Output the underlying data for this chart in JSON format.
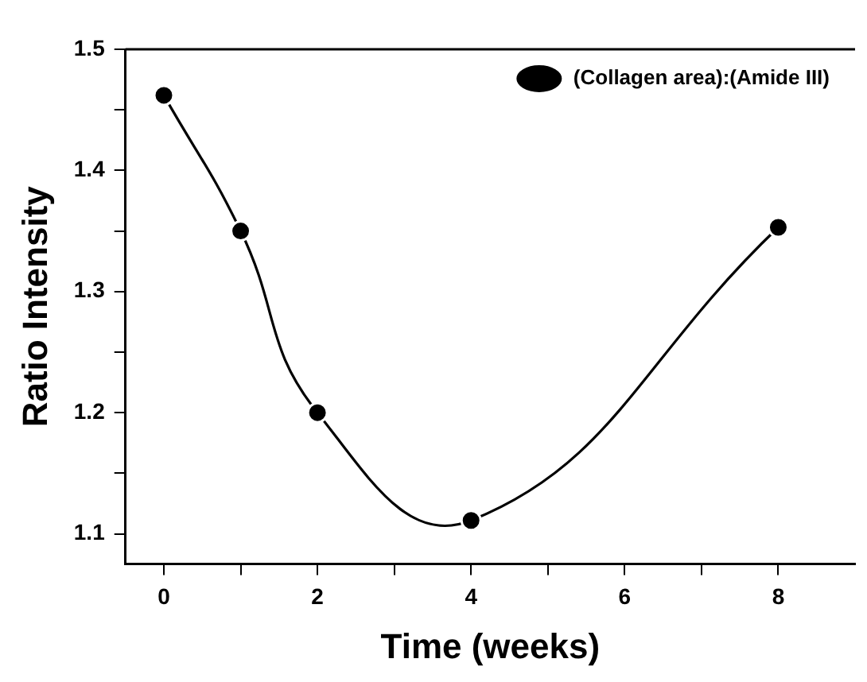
{
  "chart_data": {
    "type": "line",
    "xlabel": "Time (weeks)",
    "ylabel": "Ratio Intensity",
    "x": [
      0,
      1,
      2,
      4,
      8
    ],
    "series": [
      {
        "name": "(Collagen area):(Amide III)",
        "color": "#000000",
        "values": [
          1.462,
          1.35,
          1.2,
          1.111,
          1.353
        ]
      }
    ],
    "xlim": [
      -0.5,
      9
    ],
    "xticks": [
      0,
      {
        "value": 1,
        "label": null
      },
      2,
      {
        "value": 3,
        "label": null
      },
      4,
      {
        "value": 5,
        "label": null
      },
      6,
      {
        "value": 7,
        "label": null
      },
      8
    ],
    "ylim": [
      1.075,
      1.5
    ],
    "yticks": [
      1.1,
      {
        "value": 1.15,
        "label": null
      },
      1.2,
      {
        "value": 1.25,
        "label": null
      },
      1.3,
      {
        "value": 1.35,
        "label": null
      },
      1.4,
      {
        "value": 1.45,
        "label": null
      },
      1.5
    ],
    "grid": false,
    "legend": "top right",
    "marker": "circle",
    "line_style": "solid"
  }
}
